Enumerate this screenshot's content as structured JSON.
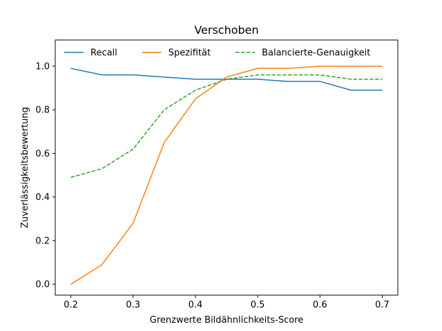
{
  "chart_data": {
    "type": "line",
    "title": "Verschoben",
    "xlabel": "Grenzwerte Bildähnlichkeits-Score",
    "ylabel": "Zuverlässigkeitsbewertung",
    "xlim": [
      0.175,
      0.725
    ],
    "ylim": [
      -0.05,
      1.12
    ],
    "grid": false,
    "legend_position": "top",
    "x": [
      0.2,
      0.25,
      0.3,
      0.35,
      0.4,
      0.45,
      0.5,
      0.55,
      0.6,
      0.65,
      0.7
    ],
    "xticks": [
      0.2,
      0.3,
      0.4,
      0.5,
      0.6,
      0.7
    ],
    "xtick_labels": [
      "0.2",
      "0.3",
      "0.4",
      "0.5",
      "0.6",
      "0.7"
    ],
    "yticks": [
      0.0,
      0.2,
      0.4,
      0.6,
      0.8,
      1.0
    ],
    "ytick_labels": [
      "0.0",
      "0.2",
      "0.4",
      "0.6",
      "0.8",
      "1.0"
    ],
    "series": [
      {
        "name": "Recall",
        "color": "#1f77b4",
        "style": "solid",
        "values": [
          0.99,
          0.96,
          0.96,
          0.95,
          0.94,
          0.94,
          0.94,
          0.93,
          0.93,
          0.89,
          0.89
        ]
      },
      {
        "name": "Spezifität",
        "color": "#ff7f0e",
        "style": "solid",
        "values": [
          0.0,
          0.09,
          0.28,
          0.65,
          0.85,
          0.95,
          0.99,
          0.99,
          1.0,
          1.0,
          1.0
        ]
      },
      {
        "name": "Balancierte-Genauigkeit",
        "color": "#2ca02c",
        "style": "dashed",
        "values": [
          0.49,
          0.53,
          0.62,
          0.8,
          0.89,
          0.94,
          0.96,
          0.96,
          0.96,
          0.94,
          0.94
        ]
      }
    ]
  }
}
